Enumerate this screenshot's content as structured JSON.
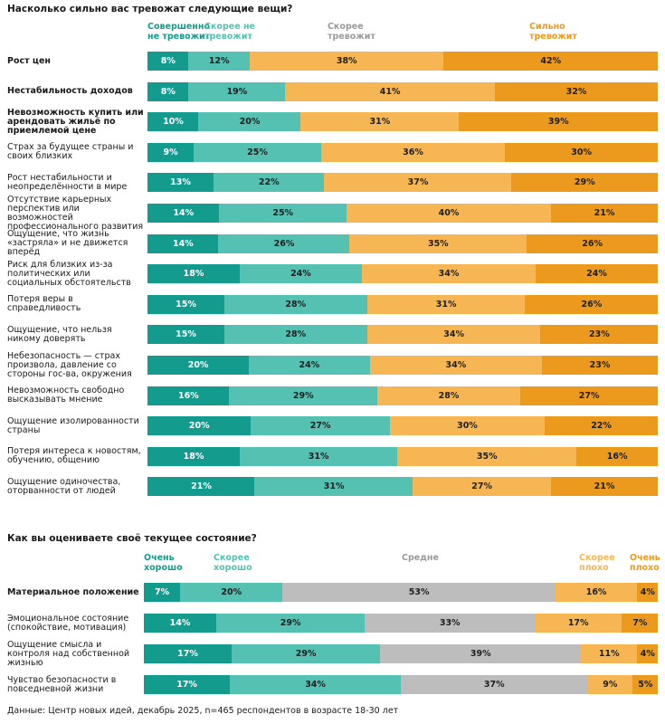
{
  "chart_data": [
    {
      "type": "bar",
      "orientation": "horizontal",
      "stacked": true,
      "normalized": true,
      "title": "Насколько сильно вас тревожат следующие вещи?",
      "xlim": [
        0,
        100
      ],
      "value_unit": "%",
      "legend_position": "top",
      "categories": [
        "Рост цен",
        "Нестабильность доходов",
        "Невозможность купить или арендовать жильё по приемлемой цене",
        "Страх за будущее страны и своих близких",
        "Рост нестабильности и неопределённости в мире",
        "Отсутствие карьерных перспектив или возможностей профессионального развития",
        "Ощущение, что жизнь «застряла» и не движется вперёд",
        "Риск для близких из-за политических или социальных обстоятельств",
        "Потеря веры в справедливость",
        "Ощущение, что нельзя никому доверять",
        "Небезопасность — страх произвола, давление со стороны гос-ва, окружения",
        "Невозможность свободно высказывать мнение",
        "Ощущение изолированности страны",
        "Потеря интереса к новостям, обучению, общению",
        "Ощущение одиночества, оторванности от людей"
      ],
      "bold_categories": [
        0,
        1,
        2
      ],
      "series": [
        {
          "name": "Совершенно не тревожит",
          "color": "#139c8d",
          "values": [
            8,
            8,
            10,
            9,
            13,
            14,
            14,
            18,
            15,
            15,
            20,
            16,
            20,
            18,
            21
          ]
        },
        {
          "name": "Скорее не тревожит",
          "color": "#54c1b2",
          "values": [
            12,
            19,
            20,
            25,
            22,
            25,
            26,
            24,
            28,
            28,
            24,
            29,
            27,
            31,
            31
          ]
        },
        {
          "name": "Скорее тревожит",
          "color": "#f6b654",
          "values": [
            38,
            41,
            31,
            36,
            37,
            40,
            35,
            34,
            31,
            34,
            34,
            28,
            30,
            35,
            27
          ]
        },
        {
          "name": "Сильно тревожит",
          "color": "#ec9a1e",
          "values": [
            42,
            32,
            39,
            30,
            29,
            21,
            26,
            24,
            26,
            23,
            23,
            27,
            22,
            16,
            21
          ]
        }
      ],
      "legend": [
        {
          "text": "Совершенно\nне тревожит",
          "color": "#139c8d"
        },
        {
          "text": "Скорее не\nтревожит",
          "color": "#54c1b2"
        },
        {
          "text": "Скорее\nтревожит",
          "color": "#9a9a9a"
        },
        {
          "text": "Сильно\nтревожит",
          "color": "#ec9a1e"
        }
      ]
    },
    {
      "type": "bar",
      "orientation": "horizontal",
      "stacked": true,
      "normalized": true,
      "title": "Как вы оцениваете своё текущее состояние?",
      "xlim": [
        0,
        100
      ],
      "value_unit": "%",
      "legend_position": "top",
      "categories": [
        "Материальное положение",
        "Эмоциональное состояние (спокойствие, мотивация)",
        "Ощущение смысла и контроля над собственной жизнью",
        "Чувство безопасности в повседневной жизни"
      ],
      "bold_categories": [
        0
      ],
      "series": [
        {
          "name": "Очень хорошо",
          "color": "#139c8d",
          "values": [
            7,
            14,
            17,
            17
          ]
        },
        {
          "name": "Скорее хорошо",
          "color": "#54c1b2",
          "values": [
            20,
            29,
            29,
            34
          ]
        },
        {
          "name": "Средне",
          "color": "#bdbdbd",
          "values": [
            53,
            33,
            39,
            37
          ]
        },
        {
          "name": "Скорее плохо",
          "color": "#f6b654",
          "values": [
            16,
            17,
            11,
            9
          ]
        },
        {
          "name": "Очень плохо",
          "color": "#ec9a1e",
          "values": [
            4,
            7,
            4,
            5
          ]
        }
      ],
      "legend": [
        {
          "text": "Очень\nхорошо",
          "color": "#139c8d"
        },
        {
          "text": "Скорее\nхорошо",
          "color": "#54c1b2"
        },
        {
          "text": "Средне",
          "color": "#9a9a9a"
        },
        {
          "text": "Скорее\nплохо",
          "color": "#f6b654"
        },
        {
          "text": "Очень\nплохо",
          "color": "#ec9a1e"
        }
      ]
    }
  ],
  "footer": "Данные: Центр новых идей, декабрь 2025, n=465 респондентов в возрасте 18-30 лет"
}
